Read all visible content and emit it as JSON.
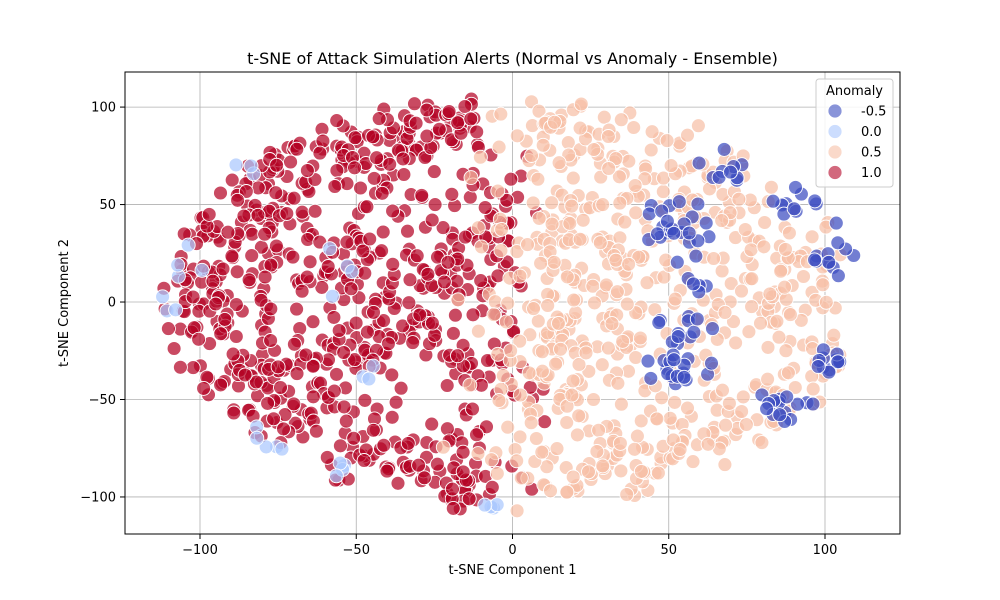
{
  "chart_data": {
    "type": "scatter",
    "title": "t-SNE of Attack Simulation Alerts (Normal vs Anomaly - Ensemble)",
    "xlabel": "t-SNE Component 1",
    "ylabel": "t-SNE Component 2",
    "xlim": [
      -124,
      124
    ],
    "ylim": [
      -119,
      118
    ],
    "xticks": [
      -100,
      -50,
      0,
      50,
      100
    ],
    "yticks": [
      -100,
      -50,
      0,
      50,
      100
    ],
    "xtick_labels": [
      "−100",
      "−50",
      "0",
      "50",
      "100"
    ],
    "ytick_labels": [
      "−100",
      "−50",
      "0",
      "50",
      "100"
    ],
    "grid": true,
    "legend": {
      "title": "Anomaly",
      "placement": "top-right",
      "entries": [
        {
          "label": "-0.5",
          "color": "#3b4cc0"
        },
        {
          "label": "0.0",
          "color": "#aac7fd"
        },
        {
          "label": "0.5",
          "color": "#f6bfa6"
        },
        {
          "label": "1.0",
          "color": "#b40426"
        }
      ]
    },
    "series": [
      {
        "value": 1.0,
        "color": "#b40426",
        "clusters": [
          {
            "center": [
              -80,
              60
            ],
            "spread": [
              14,
              14
            ],
            "count": 55
          },
          {
            "center": [
              -55,
              75
            ],
            "spread": [
              12,
              10
            ],
            "count": 45
          },
          {
            "center": [
              -30,
              80
            ],
            "spread": [
              12,
              12
            ],
            "count": 50
          },
          {
            "center": [
              -20,
              95
            ],
            "spread": [
              8,
              6
            ],
            "count": 25
          },
          {
            "center": [
              -95,
              30
            ],
            "spread": [
              10,
              12
            ],
            "count": 45
          },
          {
            "center": [
              -100,
              0
            ],
            "spread": [
              8,
              10
            ],
            "count": 40
          },
          {
            "center": [
              -90,
              -30
            ],
            "spread": [
              10,
              12
            ],
            "count": 45
          },
          {
            "center": [
              -75,
              -55
            ],
            "spread": [
              10,
              12
            ],
            "count": 40
          },
          {
            "center": [
              -60,
              20
            ],
            "spread": [
              14,
              16
            ],
            "count": 60
          },
          {
            "center": [
              -40,
              -10
            ],
            "spread": [
              14,
              18
            ],
            "count": 65
          },
          {
            "center": [
              -60,
              -30
            ],
            "spread": [
              12,
              14
            ],
            "count": 45
          },
          {
            "center": [
              -20,
              20
            ],
            "spread": [
              12,
              16
            ],
            "count": 55
          },
          {
            "center": [
              -15,
              -40
            ],
            "spread": [
              12,
              18
            ],
            "count": 55
          },
          {
            "center": [
              -40,
              -80
            ],
            "spread": [
              14,
              10
            ],
            "count": 50
          },
          {
            "center": [
              -15,
              -95
            ],
            "spread": [
              10,
              8
            ],
            "count": 35
          },
          {
            "center": [
              -5,
              40
            ],
            "spread": [
              6,
              20
            ],
            "count": 35
          }
        ]
      },
      {
        "value": 0.5,
        "color": "#f6bfa6",
        "clusters": [
          {
            "center": [
              20,
              85
            ],
            "spread": [
              14,
              12
            ],
            "count": 55
          },
          {
            "center": [
              50,
              70
            ],
            "spread": [
              14,
              12
            ],
            "count": 45
          },
          {
            "center": [
              15,
              40
            ],
            "spread": [
              12,
              16
            ],
            "count": 55
          },
          {
            "center": [
              15,
              0
            ],
            "spread": [
              12,
              18
            ],
            "count": 60
          },
          {
            "center": [
              15,
              -45
            ],
            "spread": [
              12,
              16
            ],
            "count": 60
          },
          {
            "center": [
              20,
              -85
            ],
            "spread": [
              14,
              12
            ],
            "count": 50
          },
          {
            "center": [
              50,
              -75
            ],
            "spread": [
              14,
              12
            ],
            "count": 50
          },
          {
            "center": [
              40,
              20
            ],
            "spread": [
              10,
              16
            ],
            "count": 45
          },
          {
            "center": [
              40,
              -20
            ],
            "spread": [
              10,
              14
            ],
            "count": 40
          },
          {
            "center": [
              70,
              40
            ],
            "spread": [
              12,
              14
            ],
            "count": 40
          },
          {
            "center": [
              75,
              -5
            ],
            "spread": [
              12,
              16
            ],
            "count": 45
          },
          {
            "center": [
              75,
              -55
            ],
            "spread": [
              10,
              12
            ],
            "count": 30
          },
          {
            "center": [
              95,
              10
            ],
            "spread": [
              8,
              18
            ],
            "count": 35
          },
          {
            "center": [
              95,
              -35
            ],
            "spread": [
              8,
              12
            ],
            "count": 25
          }
        ]
      },
      {
        "value": 0.0,
        "color": "#aac7fd",
        "clusters": [
          {
            "center": [
              -90,
              72
            ],
            "spread": [
              3,
              3
            ],
            "count": 3
          },
          {
            "center": [
              -105,
              25
            ],
            "spread": [
              3,
              6
            ],
            "count": 4
          },
          {
            "center": [
              -110,
              0
            ],
            "spread": [
              2,
              3
            ],
            "count": 3
          },
          {
            "center": [
              -80,
              -75
            ],
            "spread": [
              4,
              5
            ],
            "count": 5
          },
          {
            "center": [
              -55,
              -85
            ],
            "spread": [
              4,
              3
            ],
            "count": 4
          },
          {
            "center": [
              -52,
              15
            ],
            "spread": [
              5,
              8
            ],
            "count": 4
          },
          {
            "center": [
              -45,
              -38
            ],
            "spread": [
              4,
              4
            ],
            "count": 3
          },
          {
            "center": [
              -5,
              -105
            ],
            "spread": [
              5,
              2
            ],
            "count": 4
          }
        ]
      },
      {
        "value": -0.5,
        "color": "#3b4cc0",
        "clusters": [
          {
            "center": [
              52,
              38
            ],
            "spread": [
              5,
              8
            ],
            "count": 25
          },
          {
            "center": [
              55,
              -12
            ],
            "spread": [
              4,
              5
            ],
            "count": 12
          },
          {
            "center": [
              52,
              -35
            ],
            "spread": [
              7,
              5
            ],
            "count": 18
          },
          {
            "center": [
              72,
              70
            ],
            "spread": [
              4,
              5
            ],
            "count": 10
          },
          {
            "center": [
              90,
              50
            ],
            "spread": [
              5,
              5
            ],
            "count": 10
          },
          {
            "center": [
              102,
              25
            ],
            "spread": [
              4,
              6
            ],
            "count": 12
          },
          {
            "center": [
              105,
              -28
            ],
            "spread": [
              4,
              5
            ],
            "count": 12
          },
          {
            "center": [
              88,
              -55
            ],
            "spread": [
              5,
              6
            ],
            "count": 15
          },
          {
            "center": [
              58,
              8
            ],
            "spread": [
              3,
              3
            ],
            "count": 5
          }
        ]
      }
    ]
  }
}
